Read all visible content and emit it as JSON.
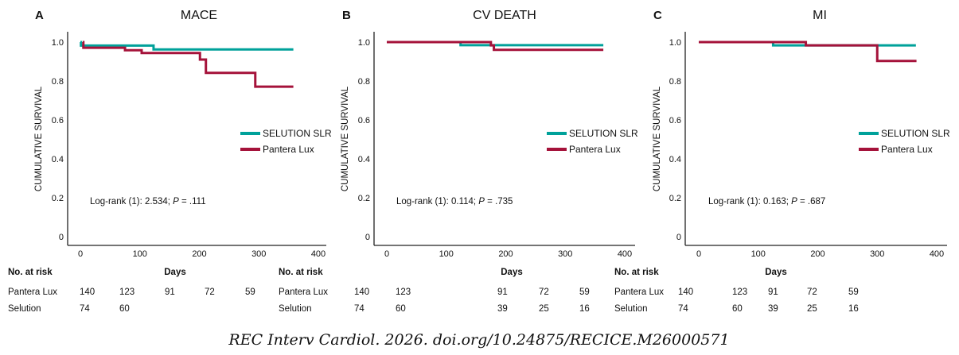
{
  "colors": {
    "selution": "#00A19A",
    "pantera": "#A5123A",
    "axis": "#222222"
  },
  "citation": "REC Interv Cardiol. 2026. doi.org/10.24875/RECICE.M26000571",
  "chart_data": [
    {
      "type": "line",
      "letter": "A",
      "title": "MACE",
      "ylabel": "CUMULATIVE SURVIVAL",
      "xlim": [
        0,
        400
      ],
      "ylim": [
        0,
        1.0
      ],
      "xticks": [
        "0",
        "100",
        "200",
        "300",
        "400"
      ],
      "yticks": [
        "0",
        "0.2",
        "0.4",
        "0.6",
        "0.8",
        "1.0"
      ],
      "grid": false,
      "legend_placement": "right",
      "annotation": {
        "prefix": "Log-rank (1): 2.534; ",
        "p_symbol": "P",
        "suffix": " = .111"
      },
      "series": [
        {
          "name": "SELUTION SLR",
          "color_key": "selution",
          "steps": [
            [
              0,
              1.0
            ],
            [
              1,
              0.982
            ],
            [
              123,
              0.962
            ],
            [
              358,
              0.962
            ]
          ]
        },
        {
          "name": "Pantera Lux",
          "color_key": "pantera",
          "steps": [
            [
              4,
              1.0
            ],
            [
              5,
              0.971
            ],
            [
              75,
              0.958
            ],
            [
              103,
              0.944
            ],
            [
              201,
              0.91
            ],
            [
              211,
              0.842
            ],
            [
              294,
              0.771
            ],
            [
              358,
              0.771
            ]
          ]
        }
      ],
      "risk_table": {
        "header": "No. at risk",
        "xlabel": "Days",
        "rows": [
          {
            "label": "Pantera Lux",
            "values": [
              "140",
              "123",
              "91",
              "72",
              "59"
            ]
          },
          {
            "label": "Selution",
            "values": [
              "74",
              "60",
              "",
              "",
              ""
            ]
          }
        ]
      }
    },
    {
      "type": "line",
      "letter": "B",
      "title": "CV DEATH",
      "ylabel": "CUMULATIVE SURVIVAL",
      "xlim": [
        0,
        400
      ],
      "ylim": [
        0,
        1.0
      ],
      "xticks": [
        "0",
        "100",
        "200",
        "300",
        "400"
      ],
      "yticks": [
        "0",
        "0.2",
        "0.4",
        "0.6",
        "0.8",
        "1.0"
      ],
      "grid": false,
      "legend_placement": "right",
      "annotation": {
        "prefix": "Log-rank (1): 0.114; ",
        "p_symbol": "P",
        "suffix": " = .735"
      },
      "series": [
        {
          "name": "SELUTION SLR",
          "color_key": "selution",
          "steps": [
            [
              0,
              1.0
            ],
            [
              124,
              0.984
            ],
            [
              364,
              0.984
            ]
          ]
        },
        {
          "name": "Pantera Lux",
          "color_key": "pantera",
          "steps": [
            [
              0,
              1.0
            ],
            [
              175,
              0.983
            ],
            [
              180,
              0.96
            ],
            [
              364,
              0.96
            ]
          ]
        }
      ],
      "risk_table": {
        "header": "No. at risk",
        "xlabel": "Days",
        "rows": [
          {
            "label": "Pantera Lux",
            "values": [
              "140",
              "123",
              "91",
              "72",
              "59"
            ]
          },
          {
            "label": "Selution",
            "values": [
              "74",
              "60",
              "39",
              "25",
              "16"
            ]
          }
        ]
      }
    },
    {
      "type": "line",
      "letter": "C",
      "title": "MI",
      "ylabel": "CUMULATIVE SURVIVAL",
      "xlim": [
        0,
        400
      ],
      "ylim": [
        0,
        1.0
      ],
      "xticks": [
        "0",
        "100",
        "200",
        "300",
        "400"
      ],
      "yticks": [
        "0",
        "0.2",
        "0.4",
        "0.6",
        "0.8",
        "1.0"
      ],
      "grid": false,
      "legend_placement": "right",
      "annotation": {
        "prefix": "Log-rank (1): 0.163; ",
        "p_symbol": "P",
        "suffix": " = .687"
      },
      "series": [
        {
          "name": "SELUTION SLR",
          "color_key": "selution",
          "steps": [
            [
              0,
              1.0
            ],
            [
              125,
              0.983
            ],
            [
              365,
              0.983
            ]
          ]
        },
        {
          "name": "Pantera Lux",
          "color_key": "pantera",
          "steps": [
            [
              0,
              1.0
            ],
            [
              180,
              0.983
            ],
            [
              300,
              0.903
            ],
            [
              366,
              0.903
            ]
          ]
        }
      ],
      "risk_table": {
        "header": "No. at risk",
        "xlabel": "Days",
        "rows": [
          {
            "label": "Pantera Lux",
            "values": [
              "140",
              "123",
              "91",
              "72",
              "59"
            ]
          },
          {
            "label": "Selution",
            "values": [
              "74",
              "60",
              "39",
              "25",
              "16"
            ]
          }
        ]
      }
    }
  ]
}
